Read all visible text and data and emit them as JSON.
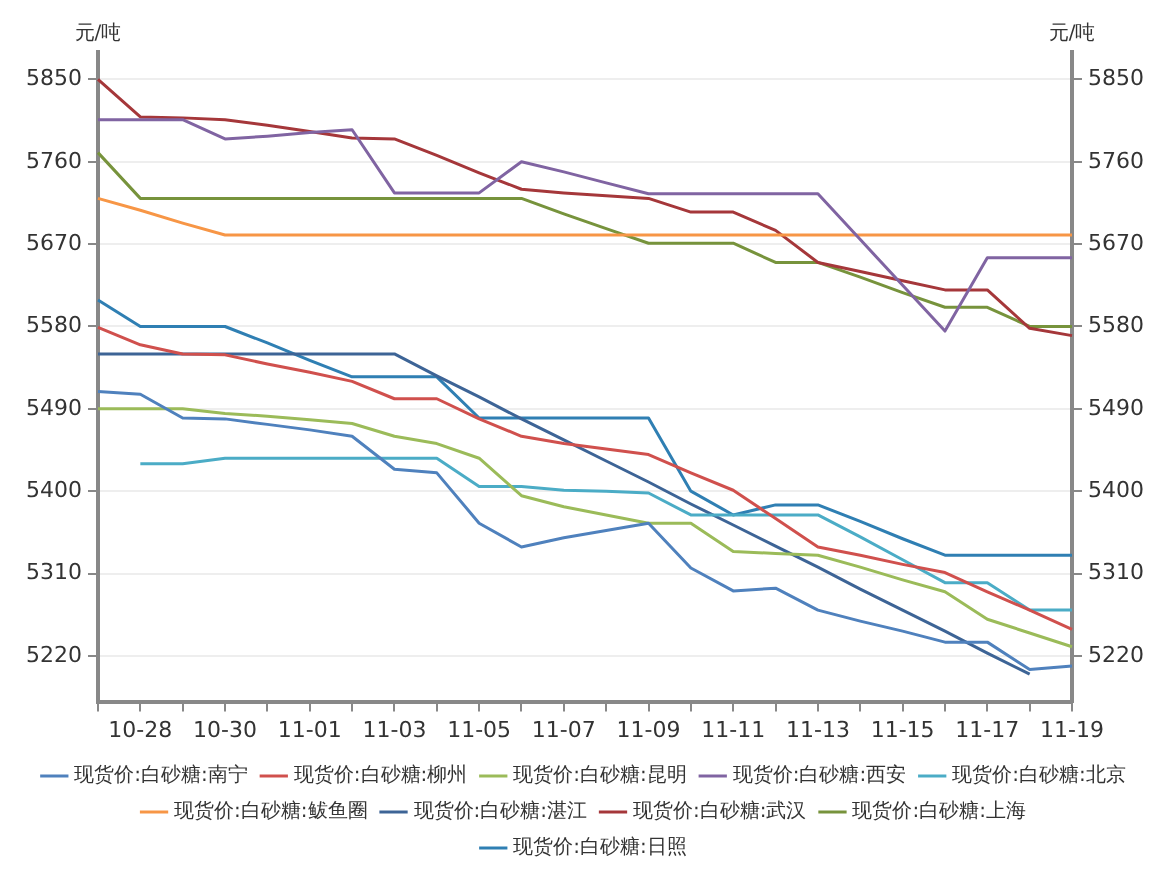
{
  "chart_data": {
    "type": "line",
    "ylabel": "元/吨",
    "y2label": "元/吨",
    "categories": [
      null,
      "10-28",
      null,
      "10-30",
      null,
      "11-01",
      null,
      "11-03",
      null,
      "11-05",
      null,
      "11-07",
      null,
      "11-09",
      null,
      "11-11",
      null,
      "11-13",
      null,
      "11-15",
      null,
      "11-17",
      null,
      "11-19"
    ],
    "ylim": [
      5170,
      5880
    ],
    "yticks": [
      5220,
      5310,
      5400,
      5490,
      5580,
      5670,
      5760,
      5850
    ],
    "y2lim": [
      5170,
      5880
    ],
    "y2ticks": [
      5220,
      5310,
      5400,
      5490,
      5580,
      5670,
      5760,
      5850
    ],
    "grid": "y",
    "legend": "bottom",
    "marker": "none",
    "line_style": "solid",
    "series": [
      {
        "name": "现货价:白砂糖:南宁",
        "color": "#4f81bd",
        "values": [
          5509,
          5506,
          5480,
          5479,
          5473,
          5467,
          5460,
          5424,
          5420,
          5365,
          5339,
          5349,
          5357,
          5365,
          5316,
          5291,
          5294,
          5270,
          5258,
          5247,
          5235,
          5235,
          5205,
          5209
        ]
      },
      {
        "name": "现货价:白砂糖:柳州",
        "color": "#d0504d",
        "values": [
          5579,
          5560,
          5550,
          5549,
          5539,
          5530,
          5520,
          5501,
          5501,
          5479,
          5460,
          5452,
          5446,
          5440,
          5420,
          5401,
          5370,
          5339,
          5330,
          5320,
          5311,
          5290,
          5270,
          5249
        ]
      },
      {
        "name": "现货价:白砂糖:昆明",
        "color": "#9bbb59",
        "values": [
          5490,
          5490,
          5490,
          5485,
          5482,
          5478,
          5474,
          5460,
          5452,
          5436,
          5395,
          5383,
          5374,
          5365,
          5365,
          5334,
          5332,
          5330,
          5317,
          5303,
          5290,
          5260,
          5245,
          5230
        ]
      },
      {
        "name": "现货价:白砂糖:西安",
        "color": "#8064a2",
        "values": [
          5806,
          5806,
          5806,
          5785,
          5788,
          5792,
          5795,
          5726,
          5726,
          5726,
          5760,
          5749,
          5737,
          5725,
          5725,
          5725,
          5725,
          5725,
          5675,
          5625,
          5575,
          5655,
          5655,
          5655
        ]
      },
      {
        "name": "现货价:白砂糖:北京",
        "color": "#4bacc6",
        "values": [
          null,
          5430,
          5430,
          5436,
          5436,
          5436,
          5436,
          5436,
          5436,
          5405,
          5405,
          5401,
          5400,
          5398,
          5374,
          5374,
          5374,
          5374,
          5350,
          5325,
          5300,
          5300,
          5270,
          5270
        ]
      },
      {
        "name": "现货价:白砂糖:鲅鱼圈",
        "color": "#f79646",
        "values": [
          5720,
          5707,
          5693,
          5680,
          5680,
          5680,
          5680,
          5680,
          5680,
          5680,
          5680,
          5680,
          5680,
          5680,
          5680,
          5680,
          5680,
          5680,
          5680,
          5680,
          5680,
          5680,
          5680,
          5680
        ]
      },
      {
        "name": "现货价:白砂糖:湛江",
        "color": "#3d6496",
        "values": [
          5550,
          5550,
          5550,
          5550,
          5550,
          5550,
          5550,
          5550,
          5526,
          5503,
          5479,
          5456,
          5433,
          5410,
          5386,
          5363,
          5340,
          5317,
          5293,
          5270,
          5247,
          5223,
          5200,
          null
        ]
      },
      {
        "name": "现货价:白砂糖:武汉",
        "color": "#a5373a",
        "values": [
          5850,
          5809,
          5808,
          5806,
          5800,
          5793,
          5786,
          5785,
          5767,
          5748,
          5730,
          5726,
          5723,
          5720,
          5705,
          5705,
          5685,
          5650,
          5640,
          5630,
          5620,
          5620,
          5578,
          5570
        ]
      },
      {
        "name": "现货价:白砂糖:上海",
        "color": "#77933c",
        "values": [
          5770,
          5720,
          5720,
          5720,
          5720,
          5720,
          5720,
          5720,
          5720,
          5720,
          5720,
          5703,
          5687,
          5671,
          5671,
          5671,
          5650,
          5650,
          5634,
          5617,
          5601,
          5601,
          5580,
          5580
        ]
      },
      {
        "name": "现货价:白砂糖:日照",
        "color": "#2f7fb3",
        "values": [
          5609,
          5580,
          5580,
          5580,
          5562,
          5543,
          5525,
          5525,
          5525,
          5480,
          5480,
          5480,
          5480,
          5480,
          5400,
          5374,
          5385,
          5385,
          5367,
          5348,
          5330,
          5330,
          5330,
          5330
        ]
      }
    ]
  }
}
